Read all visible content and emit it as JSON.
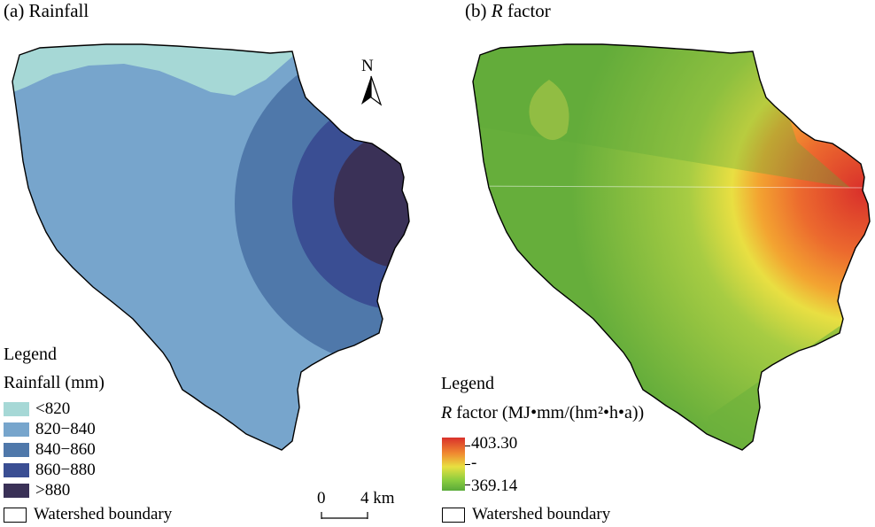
{
  "panel_a": {
    "title": "(a) Rainfall",
    "legend_heading": "Legend",
    "legend_subheading": "Rainfall (mm)",
    "classes": [
      {
        "label": "<820",
        "color": "#a6d8d6"
      },
      {
        "label": "820−840",
        "color": "#77a5cc"
      },
      {
        "label": "840−860",
        "color": "#4f78aa"
      },
      {
        "label": "860−880",
        "color": "#3a4e93"
      },
      {
        "label": ">880",
        "color": "#3a3157"
      }
    ],
    "boundary_label": "Watershed boundary"
  },
  "panel_b": {
    "title_prefix": "(b) ",
    "title_var": "R",
    "title_suffix": " factor",
    "legend_heading": "Legend",
    "legend_var": "R",
    "legend_unit": " factor (MJ•mm/(hm²•h•a))",
    "ramp_max": "403.30",
    "ramp_mid": "-",
    "ramp_min": "369.14",
    "ramp_colors": {
      "high": "#d9302b",
      "mid": "#e8e040",
      "low": "#5aaa3a"
    },
    "boundary_label": "Watershed boundary"
  },
  "north_arrow": {
    "label": "N"
  },
  "scale_bar": {
    "start": "0",
    "end": "4 km"
  }
}
